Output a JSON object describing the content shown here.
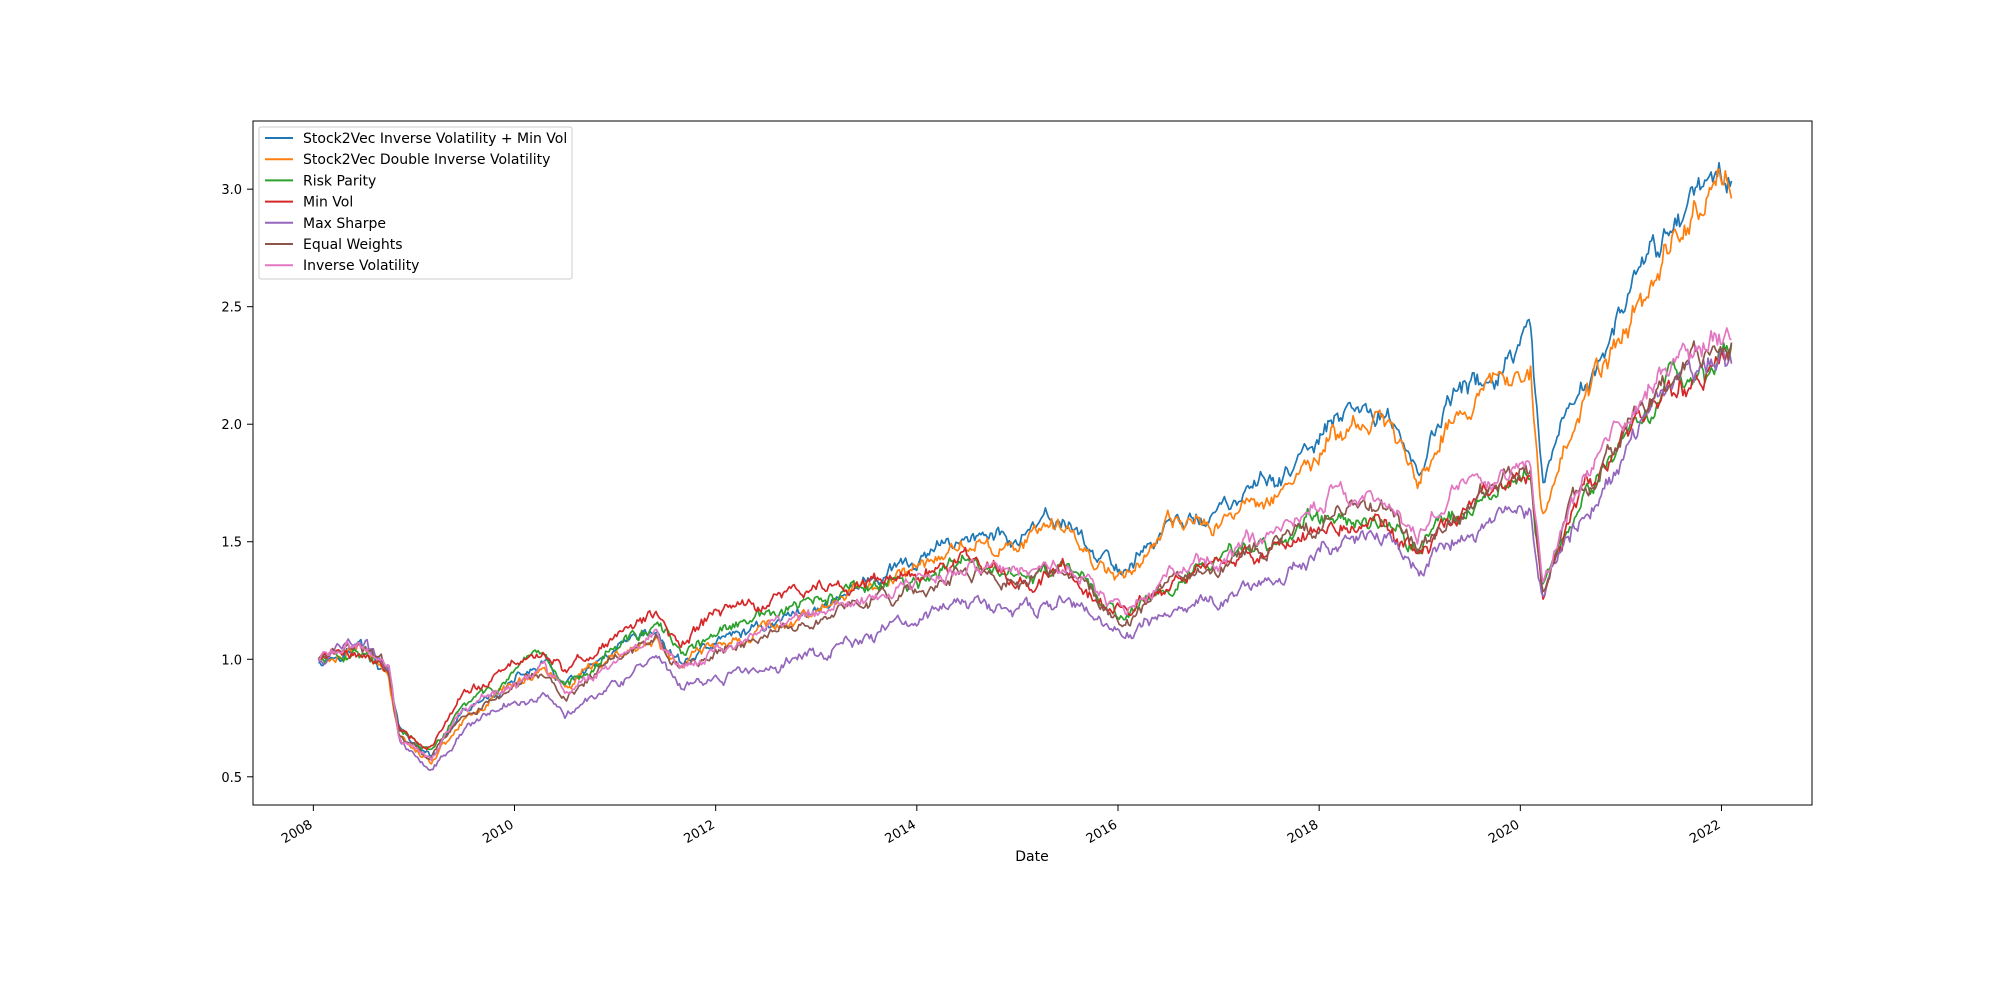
{
  "chart_data": {
    "type": "line",
    "title": "",
    "xlabel": "Date",
    "ylabel": "",
    "xlim": [
      2007.4,
      2022.9
    ],
    "ylim": [
      0.38,
      3.29
    ],
    "x_ticks": [
      {
        "value": 2008,
        "label": "2008"
      },
      {
        "value": 2010,
        "label": "2010"
      },
      {
        "value": 2012,
        "label": "2012"
      },
      {
        "value": 2014,
        "label": "2014"
      },
      {
        "value": 2016,
        "label": "2016"
      },
      {
        "value": 2018,
        "label": "2018"
      },
      {
        "value": 2020,
        "label": "2020"
      },
      {
        "value": 2022,
        "label": "2022"
      }
    ],
    "y_ticks": [
      {
        "value": 0.5,
        "label": "0.5"
      },
      {
        "value": 1.0,
        "label": "1.0"
      },
      {
        "value": 1.5,
        "label": "1.5"
      },
      {
        "value": 2.0,
        "label": "2.0"
      },
      {
        "value": 2.5,
        "label": "2.5"
      },
      {
        "value": 3.0,
        "label": "3.0"
      }
    ],
    "grid": false,
    "legend_position": "upper-left",
    "x": [
      2008.05,
      2008.2,
      2008.45,
      2008.75,
      2008.85,
      2009.17,
      2009.5,
      2010.0,
      2010.3,
      2010.5,
      2011.0,
      2011.4,
      2011.65,
      2012.0,
      2012.5,
      2013.0,
      2013.5,
      2014.0,
      2014.5,
      2014.95,
      2015.5,
      2015.75,
      2016.05,
      2016.5,
      2017.0,
      2017.5,
      2018.0,
      2018.1,
      2018.7,
      2018.98,
      2019.3,
      2019.8,
      2020.1,
      2020.22,
      2020.5,
      2021.0,
      2021.5,
      2021.95,
      2022.1
    ],
    "series": [
      {
        "name": "Stock2Vec Inverse Volatility + Min Vol",
        "color": "#1f77b4",
        "values": [
          1.0,
          1.02,
          1.07,
          0.93,
          0.7,
          0.58,
          0.76,
          0.91,
          0.98,
          0.88,
          1.01,
          1.1,
          0.98,
          1.07,
          1.15,
          1.22,
          1.33,
          1.4,
          1.53,
          1.51,
          1.59,
          1.45,
          1.38,
          1.57,
          1.62,
          1.75,
          1.9,
          2.0,
          2.05,
          1.8,
          2.1,
          2.22,
          2.35,
          1.7,
          2.05,
          2.45,
          2.85,
          3.12,
          3.07
        ]
      },
      {
        "name": "Stock2Vec Double Inverse Volatility",
        "color": "#ff7f0e",
        "values": [
          1.0,
          1.01,
          1.06,
          0.92,
          0.69,
          0.57,
          0.75,
          0.9,
          0.97,
          0.87,
          1.0,
          1.08,
          0.97,
          1.06,
          1.14,
          1.21,
          1.31,
          1.38,
          1.5,
          1.48,
          1.56,
          1.43,
          1.36,
          1.55,
          1.58,
          1.71,
          1.85,
          1.95,
          2.0,
          1.75,
          2.05,
          2.17,
          2.3,
          1.65,
          1.97,
          2.37,
          2.78,
          3.05,
          3.0
        ]
      },
      {
        "name": "Risk Parity",
        "color": "#2ca02c",
        "values": [
          1.0,
          1.02,
          1.05,
          0.94,
          0.69,
          0.6,
          0.8,
          0.93,
          0.99,
          0.89,
          1.06,
          1.14,
          1.02,
          1.1,
          1.18,
          1.24,
          1.3,
          1.32,
          1.41,
          1.35,
          1.38,
          1.28,
          1.18,
          1.33,
          1.41,
          1.5,
          1.6,
          1.62,
          1.6,
          1.47,
          1.62,
          1.72,
          1.8,
          1.32,
          1.6,
          1.92,
          2.17,
          2.28,
          2.3
        ]
      },
      {
        "name": "Min Vol",
        "color": "#d62728",
        "values": [
          1.0,
          1.02,
          1.04,
          0.95,
          0.72,
          0.63,
          0.84,
          0.98,
          1.04,
          0.94,
          1.1,
          1.19,
          1.06,
          1.2,
          1.25,
          1.3,
          1.33,
          1.35,
          1.42,
          1.34,
          1.38,
          1.27,
          1.17,
          1.31,
          1.38,
          1.46,
          1.57,
          1.58,
          1.56,
          1.42,
          1.58,
          1.69,
          1.77,
          1.27,
          1.6,
          1.92,
          2.15,
          2.27,
          2.28
        ]
      },
      {
        "name": "Max Sharpe",
        "color": "#9467bd",
        "values": [
          1.0,
          1.03,
          1.09,
          0.96,
          0.66,
          0.53,
          0.71,
          0.82,
          0.86,
          0.77,
          0.92,
          0.98,
          0.87,
          0.92,
          0.96,
          1.03,
          1.1,
          1.17,
          1.25,
          1.2,
          1.25,
          1.17,
          1.08,
          1.2,
          1.26,
          1.34,
          1.45,
          1.48,
          1.5,
          1.37,
          1.5,
          1.58,
          1.64,
          1.25,
          1.55,
          1.88,
          2.15,
          2.27,
          2.25
        ]
      },
      {
        "name": "Equal Weights",
        "color": "#8c564b",
        "values": [
          1.0,
          1.02,
          1.06,
          0.95,
          0.68,
          0.58,
          0.77,
          0.88,
          0.93,
          0.84,
          1.0,
          1.07,
          0.95,
          1.03,
          1.1,
          1.17,
          1.24,
          1.29,
          1.38,
          1.33,
          1.37,
          1.26,
          1.15,
          1.31,
          1.39,
          1.48,
          1.56,
          1.6,
          1.63,
          1.47,
          1.63,
          1.74,
          1.82,
          1.3,
          1.62,
          1.95,
          2.2,
          2.33,
          2.32
        ]
      },
      {
        "name": "Inverse Volatility",
        "color": "#e377c2",
        "values": [
          1.0,
          1.02,
          1.06,
          0.95,
          0.68,
          0.58,
          0.78,
          0.89,
          0.95,
          0.85,
          1.01,
          1.08,
          0.96,
          1.04,
          1.11,
          1.18,
          1.26,
          1.31,
          1.41,
          1.36,
          1.4,
          1.29,
          1.18,
          1.35,
          1.43,
          1.53,
          1.65,
          1.7,
          1.69,
          1.51,
          1.69,
          1.78,
          1.86,
          1.36,
          1.67,
          2.0,
          2.25,
          2.38,
          2.37
        ]
      }
    ]
  }
}
